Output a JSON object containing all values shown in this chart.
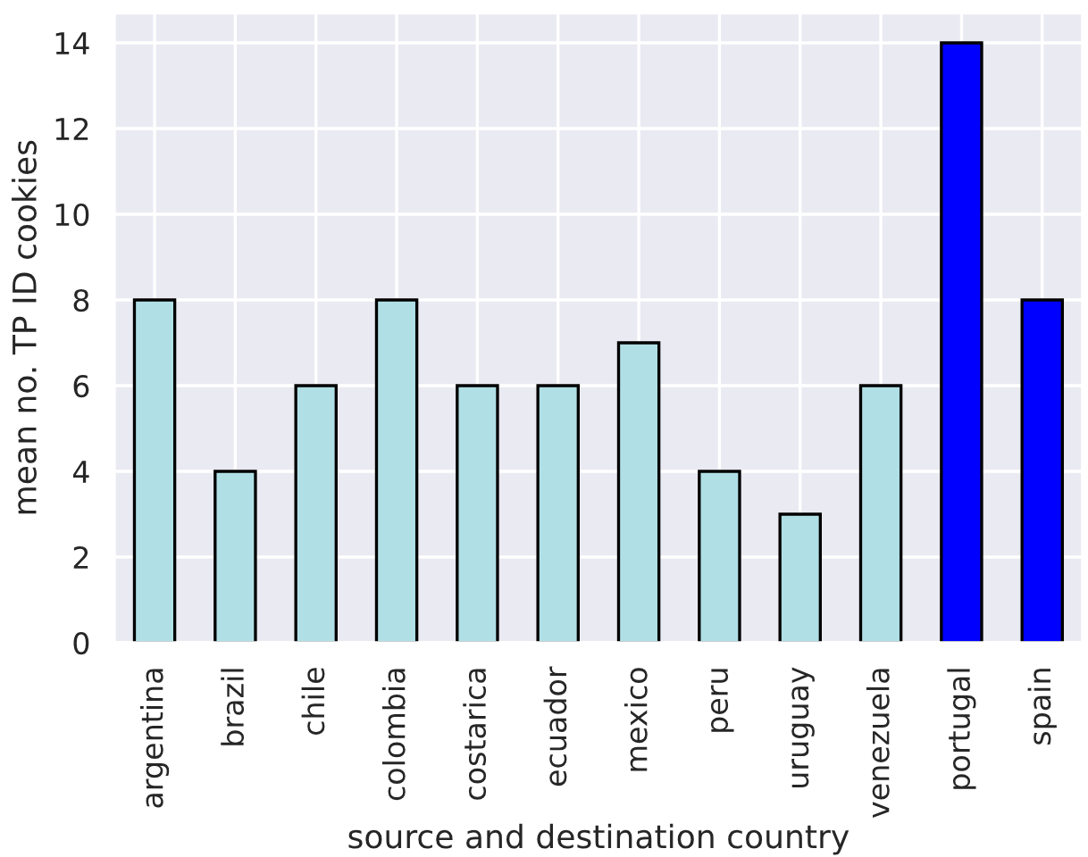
{
  "chart_data": {
    "type": "bar",
    "xlabel": "source and destination country",
    "ylabel": "mean no. TP ID cookies",
    "categories": [
      "argentina",
      "brazil",
      "chile",
      "colombia",
      "costarica",
      "ecuador",
      "mexico",
      "peru",
      "uruguay",
      "venezuela",
      "portugal",
      "spain"
    ],
    "values": [
      8,
      4,
      6,
      8,
      6,
      6,
      7,
      4,
      3,
      6,
      14,
      8
    ],
    "colors": [
      "#b0e0e6",
      "#b0e0e6",
      "#b0e0e6",
      "#b0e0e6",
      "#b0e0e6",
      "#b0e0e6",
      "#b0e0e6",
      "#b0e0e6",
      "#b0e0e6",
      "#b0e0e6",
      "#0000ff",
      "#0000ff"
    ],
    "ylim": [
      0,
      14.7
    ],
    "yticks": [
      0,
      2,
      4,
      6,
      8,
      10,
      12,
      14
    ],
    "grid": true
  }
}
